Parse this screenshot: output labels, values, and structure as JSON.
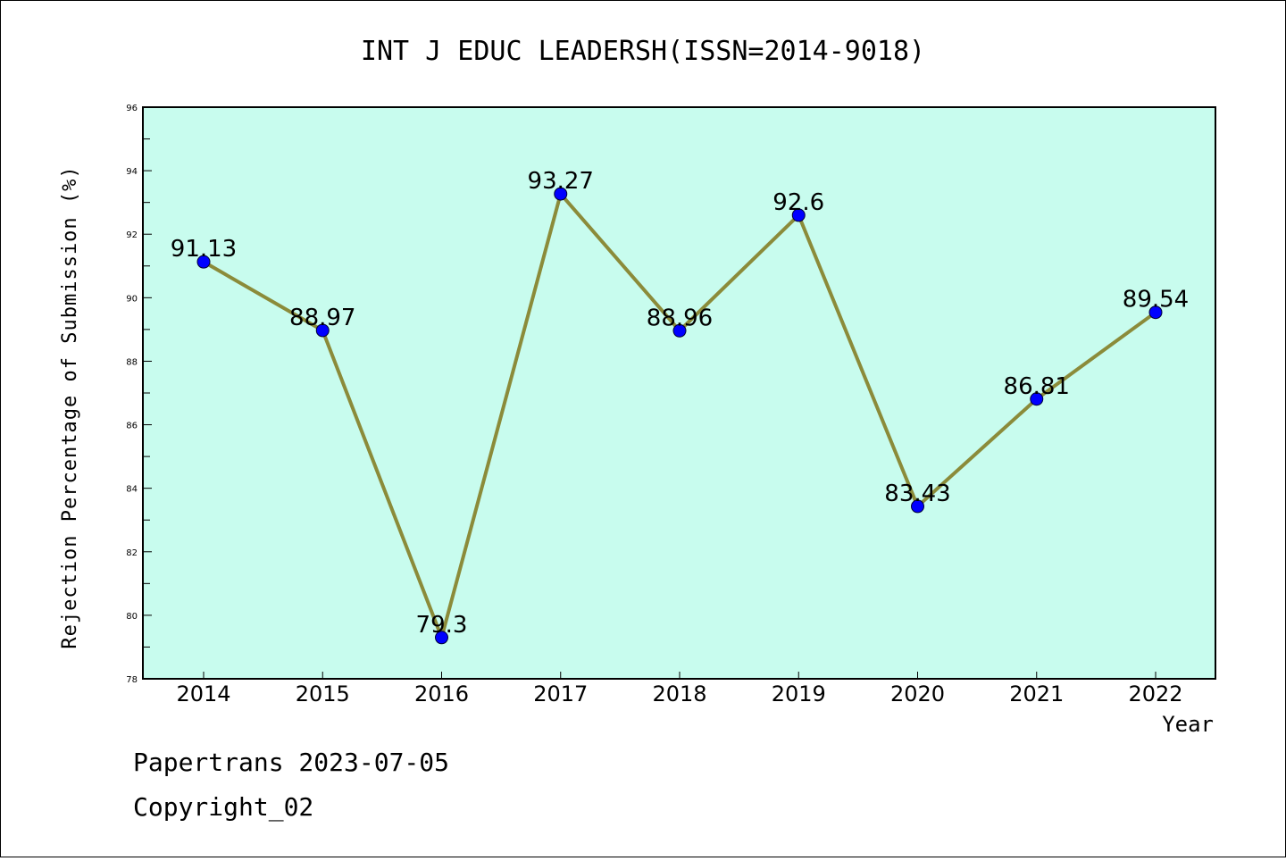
{
  "chart_data": {
    "type": "line",
    "title": "INT J EDUC LEADERSH(ISSN=2014-9018)",
    "xlabel": "Year",
    "ylabel": "Rejection Percentage of Submission (%)",
    "categories": [
      "2014",
      "2015",
      "2016",
      "2017",
      "2018",
      "2019",
      "2020",
      "2021",
      "2022"
    ],
    "values": [
      91.13,
      88.97,
      79.3,
      93.27,
      88.96,
      92.6,
      83.43,
      86.81,
      89.54
    ],
    "data_labels": [
      "91.13",
      "88.97",
      "79.3",
      "93.27",
      "88.96",
      "92.6",
      "83.43",
      "86.81",
      "89.54"
    ],
    "ylim": [
      78,
      96
    ],
    "yticks": [
      78,
      80,
      82,
      84,
      86,
      88,
      90,
      92,
      94,
      96
    ],
    "grid": false,
    "colors": {
      "plot_background": "#c8fcee",
      "line": "#8b8b3a",
      "marker": "#0000ff",
      "axes": "#000000"
    }
  },
  "footer": {
    "line1": "Papertrans 2023-07-05",
    "line2": "Copyright_02"
  }
}
